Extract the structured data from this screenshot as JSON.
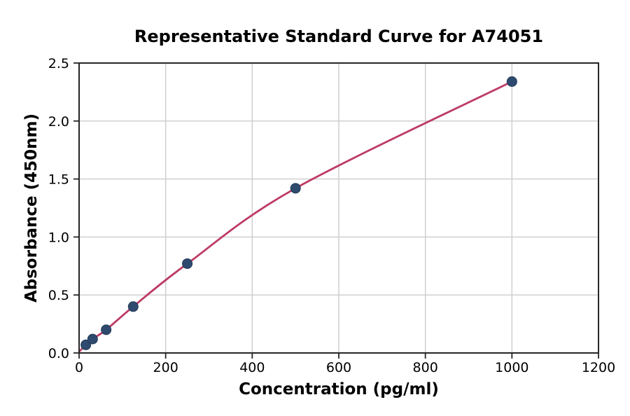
{
  "chart_data": {
    "type": "scatter",
    "title": "Representative Standard Curve for A74051",
    "xlabel": "Concentration (pg/ml)",
    "ylabel": "Absorbance (450nm)",
    "xlim": [
      0,
      1200
    ],
    "ylim": [
      0,
      2.5
    ],
    "xticks": [
      0,
      200,
      400,
      600,
      800,
      1000,
      1200
    ],
    "xtick_labels": [
      "0",
      "200",
      "400",
      "600",
      "800",
      "1000",
      "1200"
    ],
    "yticks": [
      0.0,
      0.5,
      1.0,
      1.5,
      2.0,
      2.5
    ],
    "ytick_labels": [
      "0.0",
      "0.5",
      "1.0",
      "1.5",
      "2.0",
      "2.5"
    ],
    "grid": true,
    "legend": "none",
    "points": {
      "x": [
        15.6,
        31.25,
        62.5,
        125,
        250,
        500,
        1000
      ],
      "y": [
        0.07,
        0.12,
        0.2,
        0.4,
        0.77,
        1.42,
        2.34
      ]
    },
    "curve_start": {
      "x": 0,
      "y": 0.01
    },
    "colors": {
      "line": "#bd3a64",
      "marker": "#2e4a6e",
      "marker_edge": "#223a58",
      "grid": "#cccccc",
      "spine": "#262626",
      "text": "#000000",
      "background": "#ffffff"
    }
  }
}
